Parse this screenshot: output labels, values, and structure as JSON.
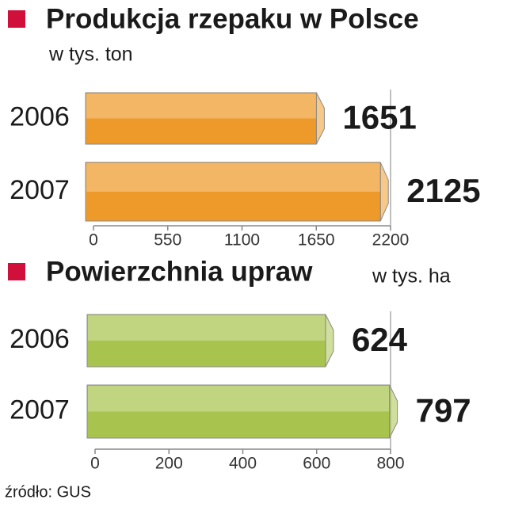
{
  "chart_data": [
    {
      "type": "bar",
      "title": "Produkcja rzepaku w Polsce",
      "subtitle": "w tys. ton",
      "categories": [
        "2006",
        "2007"
      ],
      "values": [
        1651,
        2125
      ],
      "color": "#ee9a2a",
      "xlim": [
        0,
        2200
      ],
      "xticks": [
        0,
        550,
        1100,
        1650,
        2200
      ]
    },
    {
      "type": "bar",
      "title": "Powierzchnia upraw",
      "subtitle": "w tys. ha",
      "categories": [
        "2006",
        "2007"
      ],
      "values": [
        624,
        797
      ],
      "color": "#a9c44e",
      "xlim": [
        0,
        800
      ],
      "xticks": [
        0,
        200,
        400,
        600,
        800
      ]
    }
  ],
  "source": "źródło: GUS"
}
